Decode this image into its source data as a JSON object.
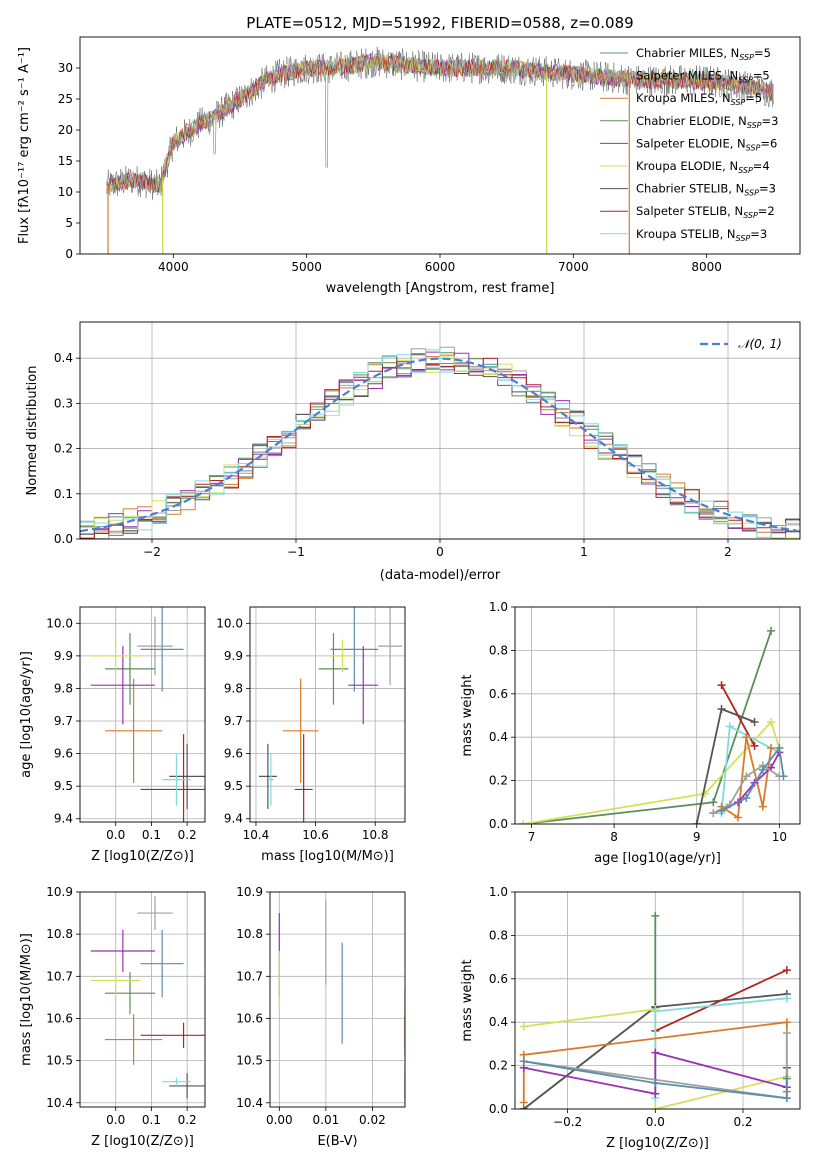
{
  "figure": {
    "title": "PLATE=0512, MJD=51992, FIBERID=0588, z=0.089"
  },
  "legend_entries": [
    {
      "name": "Chabrier MILES, N",
      "sub": "SSP",
      "suffix": "=5",
      "color": "#5b8fa8"
    },
    {
      "name": "Salpeter MILES, N",
      "sub": "SSP",
      "suffix": "=5",
      "color": "#a0a0a0"
    },
    {
      "name": "Kroupa MILES, N",
      "sub": "SSP",
      "suffix": "=5",
      "color": "#d97a2b"
    },
    {
      "name": "Chabrier ELODIE, N",
      "sub": "SSP",
      "suffix": "=3",
      "color": "#5a8f5a"
    },
    {
      "name": "Salpeter ELODIE, N",
      "sub": "SSP",
      "suffix": "=6",
      "color": "#9b30b5"
    },
    {
      "name": "Kroupa ELODIE, N",
      "sub": "SSP",
      "suffix": "=4",
      "color": "#d4e157"
    },
    {
      "name": "Chabrier STELIB, N",
      "sub": "SSP",
      "suffix": "=3",
      "color": "#555555"
    },
    {
      "name": "Salpeter STELIB, N",
      "sub": "SSP",
      "suffix": "=2",
      "color": "#b22222"
    },
    {
      "name": "Kroupa STELIB, N",
      "sub": "SSP",
      "suffix": "=3",
      "color": "#7fdbe0"
    }
  ],
  "chart_data": [
    {
      "type": "line",
      "title": "PLATE=0512, MJD=51992, FIBERID=0588, z=0.089",
      "xlabel": "wavelength [Angstrom, rest frame]",
      "ylabel": "Flux [fλ10⁻¹⁷ erg cm⁻² s⁻¹ A⁻¹]",
      "xlim": [
        3300,
        8700
      ],
      "ylim": [
        0,
        35
      ],
      "xticks": [
        4000,
        5000,
        6000,
        7000,
        8000
      ],
      "yticks": [
        0,
        5,
        10,
        15,
        20,
        25,
        30
      ],
      "spectrum_knots": {
        "x": [
          3500,
          3700,
          3900,
          4000,
          4200,
          4300,
          4500,
          4700,
          4800,
          5000,
          5200,
          5500,
          6000,
          6500,
          7000,
          7500,
          8000,
          8300,
          8500
        ],
        "y": [
          11,
          12,
          11,
          18,
          21,
          22,
          25,
          28,
          29,
          30,
          30,
          31,
          30,
          30,
          29,
          28,
          28,
          27,
          26
        ]
      },
      "drops_to_zero_x": [
        3510,
        3920,
        6800,
        7420
      ],
      "legend_loc": "upper right",
      "grid": false
    },
    {
      "type": "histogram",
      "xlabel": "(data-model)/error",
      "ylabel": "Normed distribution",
      "xlim": [
        -2.5,
        2.5
      ],
      "ylim": [
        0,
        0.48
      ],
      "xticks": [
        -2,
        -1,
        0,
        1,
        2
      ],
      "yticks": [
        0,
        0.1,
        0.2,
        0.3,
        0.4
      ],
      "reference": {
        "name": "𝒩(0, 1)",
        "mean": 0,
        "sigma": 1
      },
      "bin_width": 0.1,
      "legend_loc": "upper right",
      "grid": true
    },
    {
      "type": "scatter",
      "xlabel": "Z [log10(Z/Z⊙)]",
      "ylabel": "age [log10(age/yr)]",
      "xlim": [
        -0.1,
        0.25
      ],
      "ylim": [
        9.39,
        10.05
      ],
      "xticks": [
        0.0,
        0.1,
        0.2
      ],
      "yticks": [
        9.4,
        9.5,
        9.6,
        9.7,
        9.8,
        9.9,
        10.0
      ],
      "grid": true,
      "points": [
        {
          "x": 0.13,
          "xerr": 0.06,
          "y": 9.92,
          "yerr": 0.13,
          "series": "Chabrier MILES"
        },
        {
          "x": 0.11,
          "xerr": 0.05,
          "y": 9.93,
          "yerr": 0.09,
          "series": "Salpeter MILES"
        },
        {
          "x": 0.05,
          "xerr": 0.08,
          "y": 9.67,
          "yerr": 0.16,
          "series": "Kroupa MILES"
        },
        {
          "x": 0.04,
          "xerr": 0.07,
          "y": 9.86,
          "yerr": 0.11,
          "series": "Chabrier ELODIE"
        },
        {
          "x": 0.02,
          "xerr": 0.09,
          "y": 9.81,
          "yerr": 0.12,
          "series": "Salpeter ELODIE"
        },
        {
          "x": 0.0,
          "xerr": 0.07,
          "y": 9.9,
          "yerr": 0.05,
          "series": "Kroupa ELODIE"
        },
        {
          "x": 0.2,
          "xerr": 0.05,
          "y": 9.53,
          "yerr": 0.1,
          "series": "Chabrier STELIB"
        },
        {
          "x": 0.19,
          "xerr": 0.12,
          "y": 9.49,
          "yerr": 0.17,
          "series": "Salpeter STELIB"
        },
        {
          "x": 0.17,
          "xerr": 0.04,
          "y": 9.52,
          "yerr": 0.08,
          "series": "Kroupa STELIB"
        }
      ]
    },
    {
      "type": "scatter",
      "xlabel": "mass [log10(M/M⊙)]",
      "ylabel": "",
      "xlim": [
        10.38,
        10.9
      ],
      "ylim": [
        9.39,
        10.05
      ],
      "xticks": [
        10.4,
        10.6,
        10.8
      ],
      "yticks": [
        9.4,
        9.5,
        9.6,
        9.7,
        9.8,
        9.9,
        10.0
      ],
      "grid": true,
      "points": [
        {
          "x": 10.73,
          "xerr": 0.08,
          "y": 9.92,
          "yerr": 0.13,
          "series": "Chabrier MILES"
        },
        {
          "x": 10.85,
          "xerr": 0.04,
          "y": 9.93,
          "yerr": 0.12,
          "series": "Salpeter MILES"
        },
        {
          "x": 10.55,
          "xerr": 0.06,
          "y": 9.67,
          "yerr": 0.16,
          "series": "Kroupa MILES"
        },
        {
          "x": 10.66,
          "xerr": 0.05,
          "y": 9.86,
          "yerr": 0.11,
          "series": "Chabrier ELODIE"
        },
        {
          "x": 10.76,
          "xerr": 0.05,
          "y": 9.81,
          "yerr": 0.12,
          "series": "Salpeter ELODIE"
        },
        {
          "x": 10.69,
          "xerr": 0.04,
          "y": 9.9,
          "yerr": 0.05,
          "series": "Kroupa ELODIE"
        },
        {
          "x": 10.44,
          "xerr": 0.03,
          "y": 9.53,
          "yerr": 0.1,
          "series": "Chabrier STELIB"
        },
        {
          "x": 10.56,
          "xerr": 0.03,
          "y": 9.49,
          "yerr": 0.17,
          "series": "Salpeter STELIB"
        },
        {
          "x": 10.45,
          "xerr": 0.01,
          "y": 9.52,
          "yerr": 0.08,
          "series": "Kroupa STELIB"
        }
      ]
    },
    {
      "type": "line",
      "xlabel": "age [log10(age/yr)]",
      "ylabel": "mass weight",
      "xlim": [
        6.8,
        10.25
      ],
      "ylim": [
        0,
        1.0
      ],
      "xticks": [
        7,
        8,
        9,
        10
      ],
      "yticks": [
        0.0,
        0.2,
        0.4,
        0.6,
        0.8,
        1.0
      ],
      "grid": true,
      "series": [
        {
          "name": "Chabrier ELODIE",
          "x": [
            6.9,
            9.2,
            9.9
          ],
          "y": [
            0.0,
            0.1,
            0.89
          ]
        },
        {
          "name": "Kroupa ELODIE",
          "x": [
            6.9,
            9.1,
            9.9,
            10.0
          ],
          "y": [
            0.0,
            0.14,
            0.47,
            0.35
          ]
        },
        {
          "name": "Chabrier STELIB",
          "x": [
            9.0,
            9.3,
            9.7
          ],
          "y": [
            0.0,
            0.53,
            0.47
          ]
        },
        {
          "name": "Salpeter STELIB",
          "x": [
            9.3,
            9.7
          ],
          "y": [
            0.64,
            0.36
          ]
        },
        {
          "name": "Kroupa STELIB",
          "x": [
            9.3,
            9.4,
            10.0
          ],
          "y": [
            0.05,
            0.45,
            0.33
          ]
        },
        {
          "name": "Kroupa MILES",
          "x": [
            9.3,
            9.5,
            9.6,
            9.8,
            9.9
          ],
          "y": [
            0.08,
            0.03,
            0.4,
            0.08,
            0.35
          ]
        },
        {
          "name": "Salpeter ELODIE",
          "x": [
            9.2,
            9.5,
            9.7,
            9.9,
            10.0
          ],
          "y": [
            0.05,
            0.1,
            0.19,
            0.26,
            0.33
          ]
        },
        {
          "name": "Salpeter MILES",
          "x": [
            9.2,
            9.4,
            9.6,
            9.8,
            10.0
          ],
          "y": [
            0.05,
            0.09,
            0.22,
            0.27,
            0.22
          ]
        },
        {
          "name": "Chabrier MILES",
          "x": [
            9.3,
            9.6,
            9.8,
            10.0,
            10.05
          ],
          "y": [
            0.06,
            0.12,
            0.25,
            0.35,
            0.22
          ]
        }
      ]
    },
    {
      "type": "scatter",
      "xlabel": "Z [log10(Z/Z⊙)]",
      "ylabel": "mass [log10(M/M⊙)]",
      "xlim": [
        -0.1,
        0.25
      ],
      "ylim": [
        10.39,
        10.9
      ],
      "xticks": [
        0.0,
        0.1,
        0.2
      ],
      "yticks": [
        10.4,
        10.5,
        10.6,
        10.7,
        10.8,
        10.9
      ],
      "grid": true,
      "points": [
        {
          "x": 0.13,
          "xerr": 0.06,
          "y": 10.73,
          "yerr": 0.08,
          "series": "Chabrier MILES"
        },
        {
          "x": 0.11,
          "xerr": 0.05,
          "y": 10.85,
          "yerr": 0.04,
          "series": "Salpeter MILES"
        },
        {
          "x": 0.05,
          "xerr": 0.08,
          "y": 10.55,
          "yerr": 0.06,
          "series": "Kroupa MILES"
        },
        {
          "x": 0.04,
          "xerr": 0.07,
          "y": 10.66,
          "yerr": 0.05,
          "series": "Chabrier ELODIE"
        },
        {
          "x": 0.02,
          "xerr": 0.09,
          "y": 10.76,
          "yerr": 0.05,
          "series": "Salpeter ELODIE"
        },
        {
          "x": 0.0,
          "xerr": 0.07,
          "y": 10.69,
          "yerr": 0.04,
          "series": "Kroupa ELODIE"
        },
        {
          "x": 0.2,
          "xerr": 0.05,
          "y": 10.44,
          "yerr": 0.03,
          "series": "Chabrier STELIB"
        },
        {
          "x": 0.19,
          "xerr": 0.12,
          "y": 10.56,
          "yerr": 0.03,
          "series": "Salpeter STELIB"
        },
        {
          "x": 0.17,
          "xerr": 0.04,
          "y": 10.45,
          "yerr": 0.01,
          "series": "Kroupa STELIB"
        }
      ]
    },
    {
      "type": "scatter",
      "xlabel": "E(B-V)",
      "ylabel": "",
      "xlim": [
        -0.002,
        0.027
      ],
      "ylim": [
        10.39,
        10.9
      ],
      "xticks": [
        0.0,
        0.01,
        0.02
      ],
      "yticks": [
        10.4,
        10.5,
        10.6,
        10.7,
        10.8,
        10.9
      ],
      "grid": true,
      "points": [
        {
          "x": 0.0,
          "y": 10.75,
          "yerr": 0.1,
          "series": "Salpeter ELODIE"
        },
        {
          "x": 0.0,
          "y": 10.69,
          "yerr": 0.07,
          "series": "Kroupa ELODIE"
        },
        {
          "x": 0.01,
          "y": 10.78,
          "yerr": 0.1,
          "series": "Salpeter MILES"
        },
        {
          "x": 0.0135,
          "y": 10.66,
          "yerr": 0.12,
          "series": "Chabrier MILES"
        },
        {
          "x": 0.027,
          "y": 10.6,
          "yerr": 0.07,
          "series": "Kroupa MILES"
        },
        {
          "x": 0.027,
          "y": 10.56,
          "yerr": 0.05,
          "series": "Salpeter STELIB"
        },
        {
          "x": 0.027,
          "y": 10.45,
          "yerr": 0.05,
          "series": "Kroupa STELIB"
        },
        {
          "x": 0.027,
          "y": 10.44,
          "yerr": 0.03,
          "series": "Chabrier STELIB"
        }
      ]
    },
    {
      "type": "line",
      "xlabel": "Z [log10(Z/Z⊙)]",
      "ylabel": "mass weight",
      "xlim": [
        -0.32,
        0.33
      ],
      "ylim": [
        0,
        1.0
      ],
      "xticks": [
        -0.2,
        0.0,
        0.2
      ],
      "yticks": [
        0.0,
        0.2,
        0.4,
        0.6,
        0.8,
        1.0
      ],
      "grid": true,
      "series": [
        {
          "name": "Chabrier ELODIE",
          "x": [
            -0.3,
            0.0,
            0.0
          ],
          "y": [
            0.0,
            0.47,
            0.89
          ]
        },
        {
          "name": "Chabrier STELIB",
          "x": [
            -0.3,
            0.0,
            0.3
          ],
          "y": [
            0.0,
            0.47,
            0.53
          ]
        },
        {
          "name": "Salpeter STELIB",
          "x": [
            0.0,
            0.3
          ],
          "y": [
            0.36,
            0.64
          ]
        },
        {
          "name": "Kroupa ELODIE",
          "x": [
            -0.3,
            0.0,
            0.0,
            0.3
          ],
          "y": [
            0.38,
            0.46,
            0.0,
            0.15
          ]
        },
        {
          "name": "Kroupa STELIB",
          "x": [
            0.0,
            0.0,
            0.3
          ],
          "y": [
            0.05,
            0.45,
            0.51
          ]
        },
        {
          "name": "Kroupa MILES",
          "x": [
            -0.3,
            -0.3,
            0.3,
            0.3
          ],
          "y": [
            0.03,
            0.25,
            0.4,
            0.08
          ]
        },
        {
          "name": "Salpeter ELODIE",
          "x": [
            -0.3,
            0.0,
            0.0,
            0.3,
            0.3
          ],
          "y": [
            0.19,
            0.07,
            0.26,
            0.1,
            0.19
          ]
        },
        {
          "name": "Salpeter MILES",
          "x": [
            -0.3,
            0.3,
            0.3
          ],
          "y": [
            0.22,
            0.05,
            0.35
          ]
        },
        {
          "name": "Chabrier MILES",
          "x": [
            -0.3,
            0.0,
            0.3,
            0.3
          ],
          "y": [
            0.22,
            0.12,
            0.05,
            0.14
          ]
        }
      ]
    }
  ]
}
